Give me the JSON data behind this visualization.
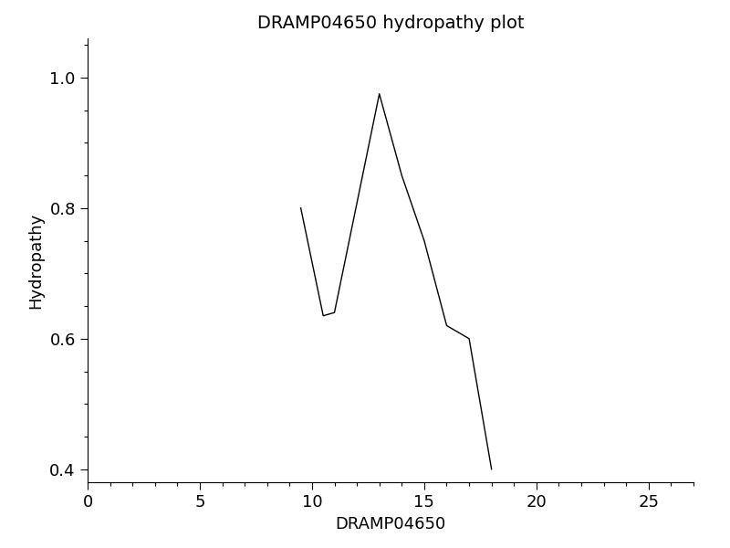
{
  "title": "DRAMP04650 hydropathy plot",
  "xlabel": "DRAMP04650",
  "ylabel": "Hydropathy",
  "x": [
    9.5,
    10.5,
    11.0,
    13.0,
    14.0,
    14.5,
    15.0,
    16.0,
    16.5,
    17.0,
    18.0
  ],
  "y": [
    0.8,
    0.635,
    0.64,
    0.975,
    0.85,
    0.8,
    0.75,
    0.62,
    0.61,
    0.6,
    0.4
  ],
  "xlim": [
    0,
    27
  ],
  "ylim": [
    0.38,
    1.06
  ],
  "xticks": [
    0,
    5,
    10,
    15,
    20,
    25
  ],
  "yticks": [
    0.4,
    0.6,
    0.8,
    1.0
  ],
  "line_color": "#000000",
  "line_width": 1.0,
  "background_color": "#ffffff",
  "tick_font_size": 13,
  "label_font_size": 13,
  "title_font_size": 14
}
